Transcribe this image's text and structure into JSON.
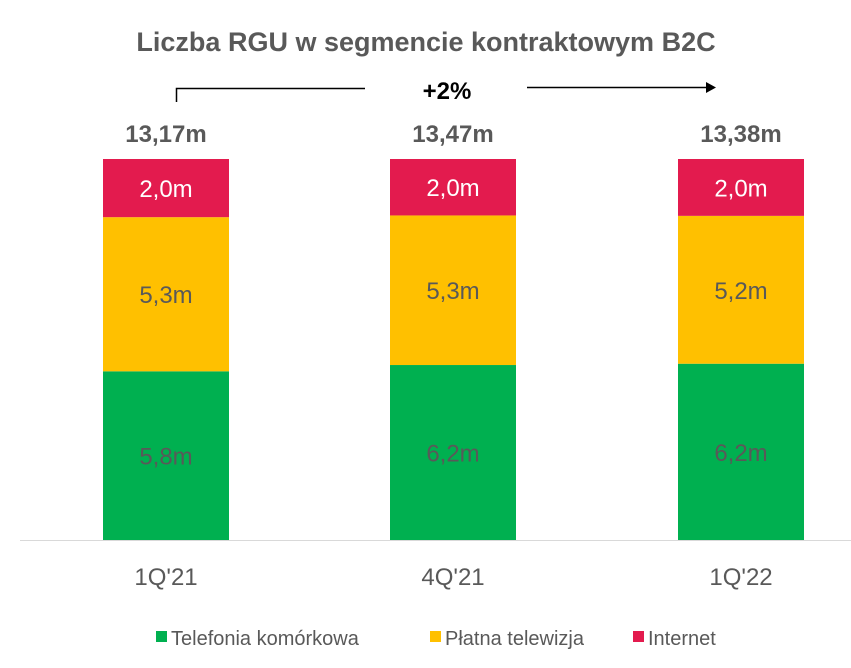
{
  "chart_data": {
    "type": "bar",
    "stacked": true,
    "title": "Liczba RGU w segmencie kontraktowym B2C",
    "categories": [
      "1Q'21",
      "4Q'21",
      "1Q'22"
    ],
    "totals": [
      "13,17m",
      "13,47m",
      "13,38m"
    ],
    "series": [
      {
        "name": "Telefonia komórkowa",
        "color": "#00B050",
        "values": [
          5.8,
          6.2,
          6.2
        ],
        "labels": [
          "5,8m",
          "6,2m",
          "6,2m"
        ],
        "label_color": "#595959"
      },
      {
        "name": "Płatna telewizja",
        "color": "#FFC000",
        "values": [
          5.3,
          5.3,
          5.2
        ],
        "labels": [
          "5,3m",
          "5,3m",
          "5,2m"
        ],
        "label_color": "#595959"
      },
      {
        "name": "Internet",
        "color": "#E31B4E",
        "values": [
          2.0,
          2.0,
          2.0
        ],
        "labels": [
          "2,0m",
          "2,0m",
          "2,0m"
        ],
        "label_color": "#FFFFFF"
      }
    ],
    "annotation": {
      "text": "+2%",
      "from": "1Q'21",
      "to": "1Q'22"
    },
    "legend_position": "bottom",
    "grid": false
  }
}
